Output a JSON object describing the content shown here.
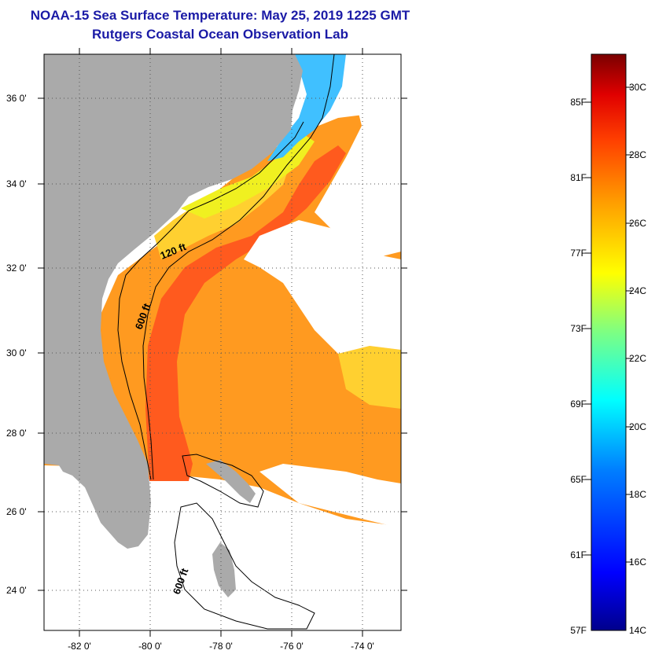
{
  "title": {
    "line1": "NOAA-15 Sea Surface Temperature:  May 25, 2019 1225 GMT",
    "line2": "Rutgers Coastal Ocean Observation Lab"
  },
  "map": {
    "lat_labels": [
      "36 0'",
      "34 0'",
      "32 0'",
      "30 0'",
      "28 0'",
      "26 0'",
      "24 0'"
    ],
    "lon_labels": [
      "-82 0'",
      "-80 0'",
      "-78 0'",
      "-76 0'",
      "-74 0'"
    ],
    "contours": {
      "shallow": "120 ft",
      "deep": "600 ft",
      "bahamas": "600 ft"
    },
    "colors": {
      "land": "#aaaaaa",
      "warm_core": "#ff5a1e",
      "warm": "#ff9a20",
      "mild": "#ffd030",
      "cool": "#f0f020",
      "cold": "#40c0ff",
      "cloud": "#ffffff"
    }
  },
  "colorbar": {
    "fahrenheit_labels": [
      "85F",
      "81F",
      "77F",
      "73F",
      "69F",
      "65F",
      "61F",
      "57F"
    ],
    "celsius_labels": [
      "30C",
      "28C",
      "26C",
      "24C",
      "22C",
      "20C",
      "18C",
      "16C",
      "14C"
    ],
    "range_c": [
      14,
      31
    ]
  }
}
